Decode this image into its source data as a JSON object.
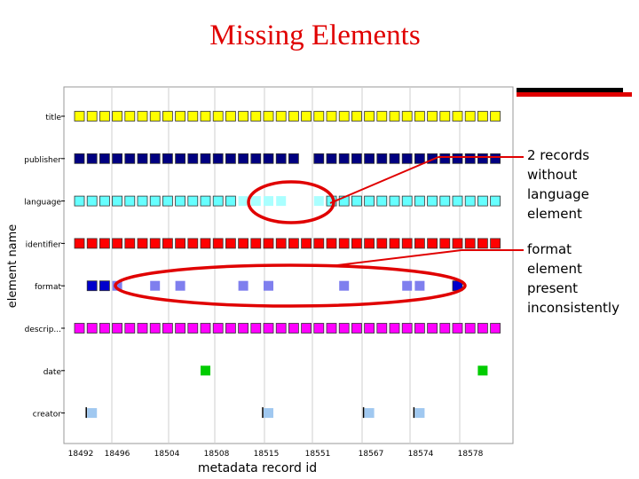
{
  "title": "Missing Elements",
  "annotations": [
    {
      "text": "2 records\nwithout\nlanguage\nelement"
    },
    {
      "text": "format\nelement\npresent\ninconsistently"
    }
  ],
  "colors": {
    "title": "#e00000",
    "annotation": "#e00000",
    "title_row": "#ffff00",
    "publisher": "#000080",
    "language": "#66ffff",
    "language_missing": "#aaffff",
    "identifier": "#ff0000",
    "format": "#0000cc",
    "format_light": "#7f7fee",
    "description": "#ff00ff",
    "date": "#00cc00",
    "creator": "#a0c8f0"
  },
  "chart_data": {
    "type": "scatter",
    "title": "",
    "xlabel": "metadata record id",
    "ylabel": "element name",
    "x_ticks": [
      "18492",
      "18496",
      "18504",
      "18508",
      "18515",
      "18551",
      "18567",
      "18574",
      "18578"
    ],
    "categories": [
      "title",
      "publisher",
      "language",
      "identifier",
      "format",
      "descrip...",
      "date",
      "creator"
    ],
    "record_count": 34,
    "series": [
      {
        "category": "title",
        "present": [
          0,
          1,
          2,
          3,
          4,
          5,
          6,
          7,
          8,
          9,
          10,
          11,
          12,
          13,
          14,
          15,
          16,
          17,
          18,
          19,
          20,
          21,
          22,
          23,
          24,
          25,
          26,
          27,
          28,
          29,
          30,
          31,
          32,
          33
        ]
      },
      {
        "category": "publisher",
        "present": [
          0,
          1,
          2,
          3,
          4,
          5,
          6,
          7,
          8,
          9,
          10,
          11,
          12,
          13,
          14,
          15,
          16,
          17,
          19,
          20,
          21,
          22,
          23,
          24,
          25,
          26,
          27,
          28,
          29,
          30,
          31,
          32,
          33
        ]
      },
      {
        "category": "language",
        "present": [
          0,
          1,
          2,
          3,
          4,
          5,
          6,
          7,
          8,
          9,
          10,
          11,
          12,
          13,
          14,
          15,
          16,
          19,
          20,
          21,
          22,
          23,
          24,
          25,
          26,
          27,
          28,
          29,
          30,
          31,
          32,
          33
        ],
        "light": [
          13,
          14,
          15,
          16,
          19
        ]
      },
      {
        "category": "identifier",
        "present": [
          0,
          1,
          2,
          3,
          4,
          5,
          6,
          7,
          8,
          9,
          10,
          11,
          12,
          13,
          14,
          15,
          16,
          17,
          18,
          19,
          20,
          21,
          22,
          23,
          24,
          25,
          26,
          27,
          28,
          29,
          30,
          31,
          32,
          33
        ]
      },
      {
        "category": "format",
        "present": [
          1,
          2,
          3,
          6,
          8,
          13,
          15,
          21,
          26,
          27,
          30
        ],
        "light": [
          3,
          6,
          8,
          13,
          15,
          21,
          26,
          27
        ]
      },
      {
        "category": "descrip...",
        "present": [
          0,
          1,
          2,
          3,
          4,
          5,
          6,
          7,
          8,
          9,
          10,
          11,
          12,
          13,
          14,
          15,
          16,
          17,
          18,
          19,
          20,
          21,
          22,
          23,
          24,
          25,
          26,
          27,
          28,
          29,
          30,
          31,
          32,
          33
        ]
      },
      {
        "category": "date",
        "present": [
          10,
          32
        ]
      },
      {
        "category": "creator",
        "present": [
          1,
          15,
          23,
          27
        ]
      }
    ]
  }
}
